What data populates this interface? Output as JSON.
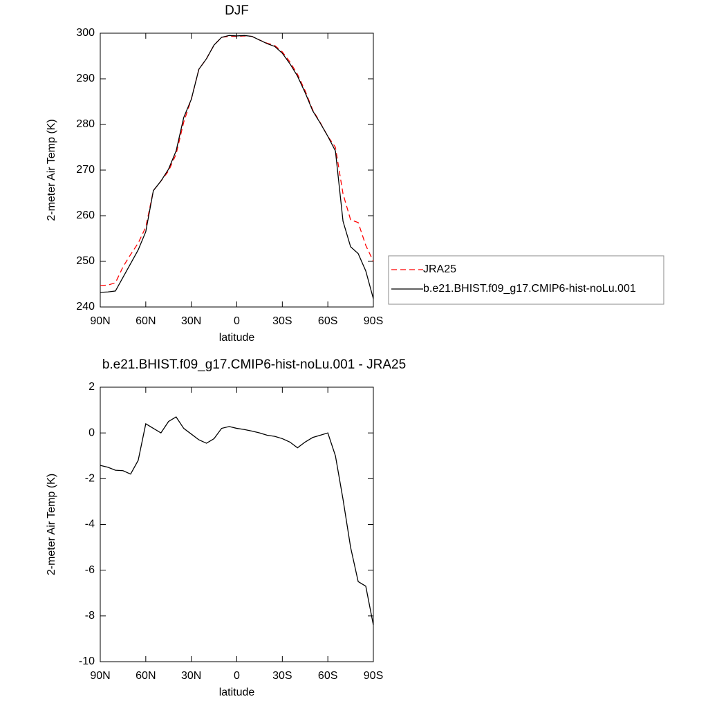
{
  "chart_data": [
    {
      "type": "line",
      "title": "DJF",
      "xlabel": "latitude",
      "ylabel": "2-meter Air Temp (K)",
      "x": [
        90,
        85,
        80,
        75,
        70,
        65,
        60,
        55,
        50,
        45,
        40,
        35,
        30,
        25,
        20,
        15,
        10,
        5,
        0,
        -5,
        -10,
        -15,
        -20,
        -25,
        -30,
        -35,
        -40,
        -45,
        -50,
        -55,
        -60,
        -65,
        -70,
        -75,
        -80,
        -85,
        -90
      ],
      "series": [
        {
          "name": "JRA25",
          "color": "#ff0000",
          "line_style": "dashed",
          "values": [
            244.7,
            244.8,
            245.3,
            248.8,
            251.5,
            254,
            257.5,
            265.5,
            267.6,
            269.8,
            273.5,
            280.5,
            285.5,
            292.1,
            294.4,
            297.4,
            299.1,
            299.3,
            299.3,
            299.4,
            299.3,
            298.5,
            297.8,
            297.3,
            295.9,
            293.7,
            291.0,
            287.4,
            283.2,
            280.4,
            277.4,
            275.0,
            264.8,
            259.1,
            258.5,
            253.5,
            250
          ]
        },
        {
          "name": "b.e21.BHIST.f09_g17.CMIP6-hist-noLu.001",
          "color": "#000000",
          "line_style": "solid",
          "values": [
            243.2,
            243.3,
            243.5,
            246.5,
            249.5,
            252.5,
            256.5,
            265.5,
            267.6,
            270.2,
            274.2,
            281.5,
            285.5,
            292.1,
            294.4,
            297.4,
            299.1,
            299.5,
            299.4,
            299.5,
            299.3,
            298.5,
            297.7,
            297.1,
            295.6,
            293.3,
            290.6,
            287.0,
            283.0,
            280.3,
            277.4,
            274.2,
            258.8,
            253.2,
            251.7,
            247.9,
            241.8
          ]
        }
      ],
      "xlim": [
        90,
        -90
      ],
      "xticks": [
        {
          "value": 90,
          "label": "90N"
        },
        {
          "value": 60,
          "label": "60N"
        },
        {
          "value": 30,
          "label": "30N"
        },
        0,
        {
          "value": -30,
          "label": "30S"
        },
        {
          "value": -60,
          "label": "60S"
        },
        {
          "value": -90,
          "label": "90S"
        }
      ],
      "ylim": [
        240,
        300
      ],
      "yticks": [
        240,
        250,
        260,
        270,
        280,
        290,
        300
      ]
    },
    {
      "type": "line",
      "title": "b.e21.BHIST.f09_g17.CMIP6-hist-noLu.001 - JRA25",
      "xlabel": "latitude",
      "ylabel": "2-meter Air Temp (K)",
      "x": [
        90,
        85,
        80,
        75,
        70,
        65,
        60,
        55,
        50,
        45,
        40,
        35,
        30,
        25,
        20,
        15,
        10,
        5,
        0,
        -5,
        -10,
        -15,
        -20,
        -25,
        -30,
        -35,
        -40,
        -45,
        -50,
        -55,
        -60,
        -65,
        -70,
        -75,
        -80,
        -85,
        -90
      ],
      "values": [
        -1.42,
        -1.5,
        -1.63,
        -1.65,
        -1.8,
        -1.2,
        0.4,
        0.2,
        0.0,
        0.5,
        0.7,
        0.2,
        -0.05,
        -0.3,
        -0.45,
        -0.25,
        0.2,
        0.28,
        0.2,
        0.15,
        0.08,
        0.0,
        -0.1,
        -0.15,
        -0.25,
        -0.4,
        -0.65,
        -0.4,
        -0.2,
        -0.1,
        0.0,
        -1.0,
        -2.9,
        -5.0,
        -6.5,
        -6.7,
        -8.4
      ],
      "color": "#000000",
      "xlim": [
        90,
        -90
      ],
      "xticks": [
        {
          "value": 90,
          "label": "90N"
        },
        {
          "value": 60,
          "label": "60N"
        },
        {
          "value": 30,
          "label": "30N"
        },
        0,
        {
          "value": -30,
          "label": "30S"
        },
        {
          "value": -60,
          "label": "60S"
        },
        {
          "value": -90,
          "label": "90S"
        }
      ],
      "ylim": [
        -10,
        2
      ],
      "yticks": [
        -10,
        -8,
        -6,
        -4,
        -2,
        0,
        2
      ]
    }
  ]
}
